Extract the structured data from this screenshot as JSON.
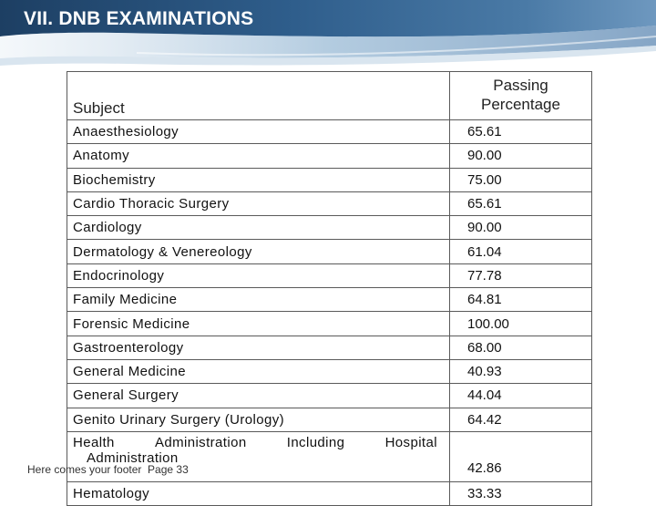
{
  "slide": {
    "title": "VII. DNB EXAMINATIONS"
  },
  "table": {
    "headers": {
      "subject": "Subject",
      "passing_line1": "Passing",
      "passing_line2": "Percentage"
    },
    "rows": [
      {
        "subject": "Anaesthesiology",
        "percentage": "65.61"
      },
      {
        "subject": "Anatomy",
        "percentage": "90.00"
      },
      {
        "subject": "Biochemistry",
        "percentage": "75.00"
      },
      {
        "subject": "Cardio Thoracic Surgery",
        "percentage": "65.61"
      },
      {
        "subject": "Cardiology",
        "percentage": "90.00"
      },
      {
        "subject": "Dermatology & Venereology",
        "percentage": "61.04"
      },
      {
        "subject": "Endocrinology",
        "percentage": "77.78"
      },
      {
        "subject": "Family Medicine",
        "percentage": "64.81"
      },
      {
        "subject": "Forensic Medicine",
        "percentage": "100.00"
      },
      {
        "subject": "Gastroenterology",
        "percentage": "68.00"
      },
      {
        "subject": "General Medicine",
        "percentage": "40.93"
      },
      {
        "subject": "General Surgery",
        "percentage": "44.04"
      },
      {
        "subject": "Genito Urinary Surgery (Urology)",
        "percentage": "64.42"
      },
      {
        "subject_words": [
          "Health",
          "Administration",
          "Including",
          "Hospital"
        ],
        "subject_line2": "Administration",
        "percentage": "42.86"
      },
      {
        "subject": "Hematology",
        "percentage": "33.33"
      }
    ]
  },
  "footer": {
    "text": "Here comes your footer  Page 33"
  },
  "colors": {
    "banner_dark": "#1d3f63",
    "banner_mid": "#3a6a95",
    "banner_light": "#8fb3d1",
    "table_border": "#5a5a5a",
    "text": "#111111"
  }
}
